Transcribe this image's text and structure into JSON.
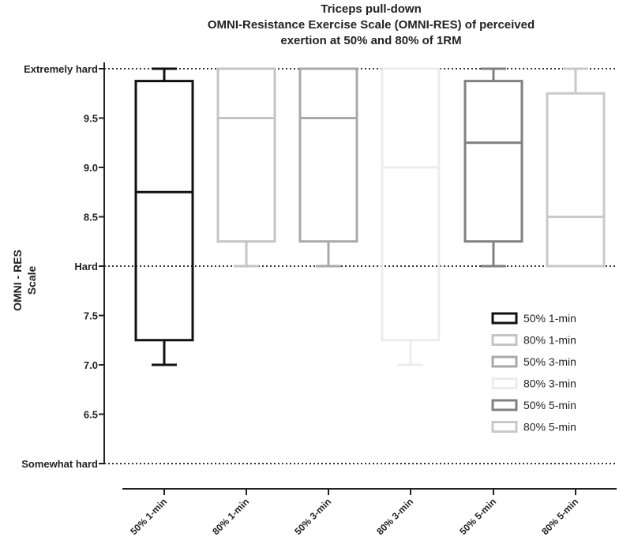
{
  "chart_data": {
    "type": "box",
    "title": [
      "Triceps pull-down",
      "OMNI-Resistance Exercise Scale (OMNI-RES) of perceived",
      "exertion at 50% and 80% of 1RM"
    ],
    "ylabel": [
      "OMNI - RES",
      "Scale"
    ],
    "xlabel": "",
    "ylim": [
      6.0,
      10.0
    ],
    "yticks": [
      {
        "value": 10.0,
        "label": "Extremely hard"
      },
      {
        "value": 9.5,
        "label": "9.5"
      },
      {
        "value": 9.0,
        "label": "9.0"
      },
      {
        "value": 8.5,
        "label": "8.5"
      },
      {
        "value": 8.0,
        "label": "Hard"
      },
      {
        "value": 7.5,
        "label": "7.5"
      },
      {
        "value": 7.0,
        "label": "7.0"
      },
      {
        "value": 6.5,
        "label": "6.5"
      },
      {
        "value": 6.0,
        "label": "Somewhat hard"
      }
    ],
    "reference_lines": [
      10.0,
      8.0,
      6.0
    ],
    "legend_position": "right",
    "series": [
      {
        "name": "50% 1-min",
        "color": "#111111",
        "min": 7.0,
        "q1": 7.25,
        "median": 8.75,
        "q3": 9.875,
        "max": 10.0
      },
      {
        "name": "80% 1-min",
        "color": "#c4c4c4",
        "min": 8.0,
        "q1": 8.25,
        "median": 9.5,
        "q3": 10.0,
        "max": 10.0
      },
      {
        "name": "50% 3-min",
        "color": "#a9a9a9",
        "min": 8.0,
        "q1": 8.25,
        "median": 9.5,
        "q3": 10.0,
        "max": 10.0
      },
      {
        "name": "80% 3-min",
        "color": "#ececec",
        "min": 7.0,
        "q1": 7.25,
        "median": 9.0,
        "q3": 10.0,
        "max": 10.0
      },
      {
        "name": "50% 5-min",
        "color": "#808080",
        "min": 8.0,
        "q1": 8.25,
        "median": 9.25,
        "q3": 9.875,
        "max": 10.0
      },
      {
        "name": "80% 5-min",
        "color": "#c9c9c9",
        "min": 8.0,
        "q1": 8.0,
        "median": 8.5,
        "q3": 9.75,
        "max": 10.0
      }
    ]
  }
}
